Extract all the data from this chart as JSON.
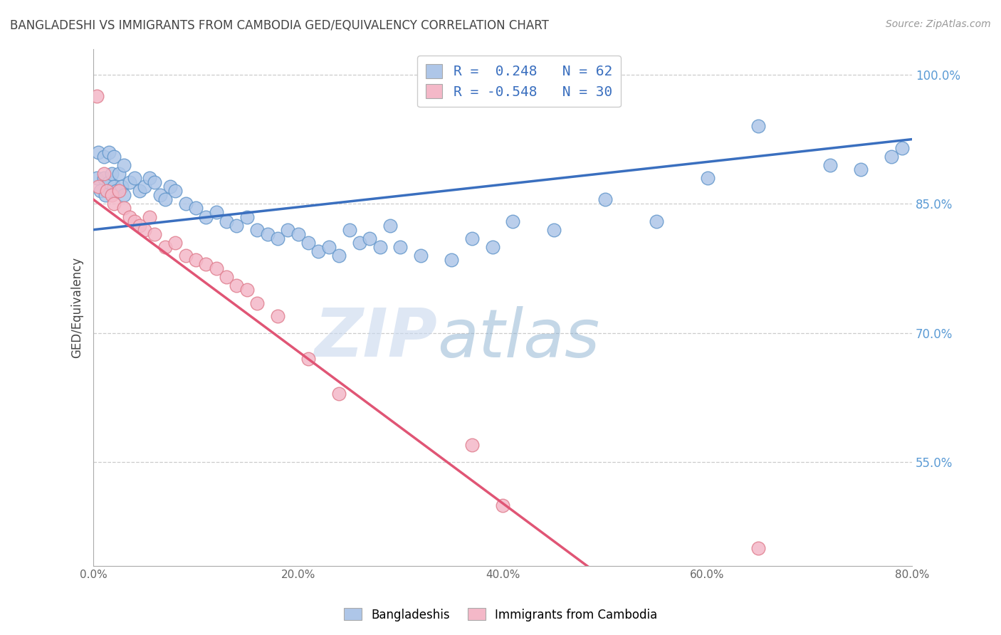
{
  "title": "BANGLADESHI VS IMMIGRANTS FROM CAMBODIA GED/EQUIVALENCY CORRELATION CHART",
  "source": "Source: ZipAtlas.com",
  "ylabel": "GED/Equivalency",
  "xlabel_vals": [
    0.0,
    20.0,
    40.0,
    60.0,
    80.0
  ],
  "ylabel_vals": [
    55.0,
    70.0,
    85.0,
    100.0
  ],
  "xmin": 0.0,
  "xmax": 80.0,
  "ymin": 43.0,
  "ymax": 103.0,
  "blue_color": "#aec6e8",
  "blue_edge": "#6699cc",
  "pink_color": "#f4b8c8",
  "pink_edge": "#e08090",
  "blue_line_color": "#3a6fbf",
  "pink_line_color": "#e05575",
  "r_blue": 0.248,
  "n_blue": 62,
  "r_pink": -0.548,
  "n_pink": 30,
  "legend_label_blue": "Bangladeshis",
  "legend_label_pink": "Immigrants from Cambodia",
  "blue_scatter_x": [
    0.3,
    0.5,
    0.7,
    1.0,
    1.0,
    1.2,
    1.5,
    1.5,
    1.8,
    2.0,
    2.0,
    2.2,
    2.5,
    2.8,
    3.0,
    3.0,
    3.5,
    4.0,
    4.5,
    5.0,
    5.5,
    6.0,
    6.5,
    7.0,
    7.5,
    8.0,
    9.0,
    10.0,
    11.0,
    12.0,
    13.0,
    14.0,
    15.0,
    16.0,
    17.0,
    18.0,
    19.0,
    20.0,
    21.0,
    22.0,
    23.0,
    24.0,
    25.0,
    26.0,
    27.0,
    28.0,
    29.0,
    30.0,
    32.0,
    35.0,
    37.0,
    39.0,
    41.0,
    45.0,
    50.0,
    55.0,
    60.0,
    65.0,
    72.0,
    75.0,
    78.0,
    79.0
  ],
  "blue_scatter_y": [
    88.0,
    91.0,
    86.5,
    90.5,
    88.0,
    86.0,
    91.0,
    87.5,
    88.5,
    90.5,
    87.0,
    86.5,
    88.5,
    87.0,
    89.5,
    86.0,
    87.5,
    88.0,
    86.5,
    87.0,
    88.0,
    87.5,
    86.0,
    85.5,
    87.0,
    86.5,
    85.0,
    84.5,
    83.5,
    84.0,
    83.0,
    82.5,
    83.5,
    82.0,
    81.5,
    81.0,
    82.0,
    81.5,
    80.5,
    79.5,
    80.0,
    79.0,
    82.0,
    80.5,
    81.0,
    80.0,
    82.5,
    80.0,
    79.0,
    78.5,
    81.0,
    80.0,
    83.0,
    82.0,
    85.5,
    83.0,
    88.0,
    94.0,
    89.5,
    89.0,
    90.5,
    91.5
  ],
  "pink_scatter_x": [
    0.3,
    0.5,
    1.0,
    1.3,
    1.8,
    2.0,
    2.5,
    3.0,
    3.5,
    4.0,
    4.5,
    5.0,
    5.5,
    6.0,
    7.0,
    8.0,
    9.0,
    10.0,
    11.0,
    12.0,
    13.0,
    14.0,
    15.0,
    16.0,
    18.0,
    21.0,
    24.0,
    37.0,
    40.0,
    65.0
  ],
  "pink_scatter_y": [
    97.5,
    87.0,
    88.5,
    86.5,
    86.0,
    85.0,
    86.5,
    84.5,
    83.5,
    83.0,
    82.5,
    82.0,
    83.5,
    81.5,
    80.0,
    80.5,
    79.0,
    78.5,
    78.0,
    77.5,
    76.5,
    75.5,
    75.0,
    73.5,
    72.0,
    67.0,
    63.0,
    57.0,
    50.0,
    45.0
  ],
  "watermark_zip": "ZIP",
  "watermark_atlas": "atlas"
}
